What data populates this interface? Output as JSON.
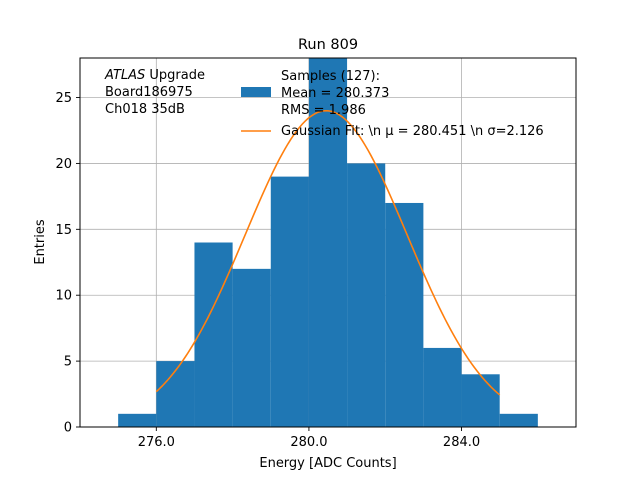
{
  "chart_data": {
    "type": "bar",
    "title": "Run 809",
    "xlabel": "Energy [ADC Counts]",
    "ylabel": "Entries",
    "xlim": [
      274.0,
      287.0
    ],
    "ylim": [
      0,
      28.0
    ],
    "grid": true,
    "xticks": [
      {
        "value": 276.0,
        "label": "276.0"
      },
      {
        "value": 280.0,
        "label": "280.0"
      },
      {
        "value": 284.0,
        "label": "284.0"
      }
    ],
    "yticks": [
      {
        "value": 0,
        "label": "0"
      },
      {
        "value": 5,
        "label": "5"
      },
      {
        "value": 10,
        "label": "10"
      },
      {
        "value": 15,
        "label": "15"
      },
      {
        "value": 20,
        "label": "20"
      },
      {
        "value": 25,
        "label": "25"
      }
    ],
    "histogram": {
      "bin_edges": [
        275,
        276,
        277,
        278,
        279,
        280,
        281,
        282,
        283,
        284,
        285,
        286
      ],
      "counts": [
        1,
        5,
        14,
        12,
        19,
        28,
        20,
        17,
        6,
        4,
        1
      ],
      "color": "#1f77b4"
    },
    "fit": {
      "type": "gaussian",
      "mu": 280.451,
      "sigma": 2.126,
      "amplitude": 24.0,
      "x_range": [
        276.0,
        285.0
      ],
      "color": "#ff7f0e"
    },
    "legend": {
      "placement": "top-right",
      "entries": [
        {
          "kind": "patch",
          "color": "#1f77b4",
          "lines": [
            "Samples (127):",
            " Mean = 280.373",
            " RMS = 1.986"
          ]
        },
        {
          "kind": "line",
          "color": "#ff7f0e",
          "text": "Gaussian Fit: \\n μ = 280.451 \\n σ=2.126"
        }
      ]
    },
    "annotation": {
      "placement": "top-left",
      "lines": [
        {
          "italic": "ATLAS",
          "rest": " Upgrade"
        },
        {
          "italic": "",
          "rest": " Board186975"
        },
        {
          "italic": "",
          "rest": " Ch018 35dB"
        }
      ]
    }
  }
}
